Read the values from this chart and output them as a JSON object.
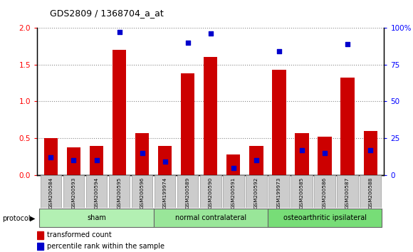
{
  "title": "GDS2809 / 1368704_a_at",
  "samples": [
    "GSM200584",
    "GSM200593",
    "GSM200594",
    "GSM200595",
    "GSM200596",
    "GSM199974",
    "GSM200589",
    "GSM200590",
    "GSM200591",
    "GSM200592",
    "GSM199973",
    "GSM200585",
    "GSM200586",
    "GSM200587",
    "GSM200588"
  ],
  "transformed_count": [
    0.5,
    0.38,
    0.4,
    1.7,
    0.57,
    0.4,
    1.38,
    1.6,
    0.28,
    0.4,
    1.43,
    0.57,
    0.52,
    1.32,
    0.6
  ],
  "percentile_rank": [
    12,
    10,
    10,
    97,
    15,
    9,
    90,
    96,
    5,
    10,
    84,
    17,
    15,
    89,
    17
  ],
  "red_bar_color": "#cc0000",
  "blue_dot_color": "#0000cc",
  "ylim_left": [
    0,
    2
  ],
  "ylim_right": [
    0,
    100
  ],
  "yticks_left": [
    0,
    0.5,
    1.0,
    1.5,
    2.0
  ],
  "yticks_right": [
    0,
    25,
    50,
    75,
    100
  ],
  "ytick_labels_right": [
    "0",
    "25",
    "50",
    "75",
    "100%"
  ],
  "groups": [
    {
      "label": "sham",
      "start": 0,
      "end": 5,
      "color": "#b3f0b3"
    },
    {
      "label": "normal contralateral",
      "start": 5,
      "end": 10,
      "color": "#99e699"
    },
    {
      "label": "osteoarthritic ipsilateral",
      "start": 10,
      "end": 15,
      "color": "#77dd77"
    }
  ],
  "protocol_label": "protocol",
  "legend_items": [
    {
      "label": "transformed count",
      "color": "#cc0000"
    },
    {
      "label": "percentile rank within the sample",
      "color": "#0000cc"
    }
  ],
  "background_color": "#ffffff",
  "plot_bg_color": "#ffffff",
  "grid_color": "#888888",
  "tick_label_bg": "#cccccc",
  "bar_width": 0.6
}
